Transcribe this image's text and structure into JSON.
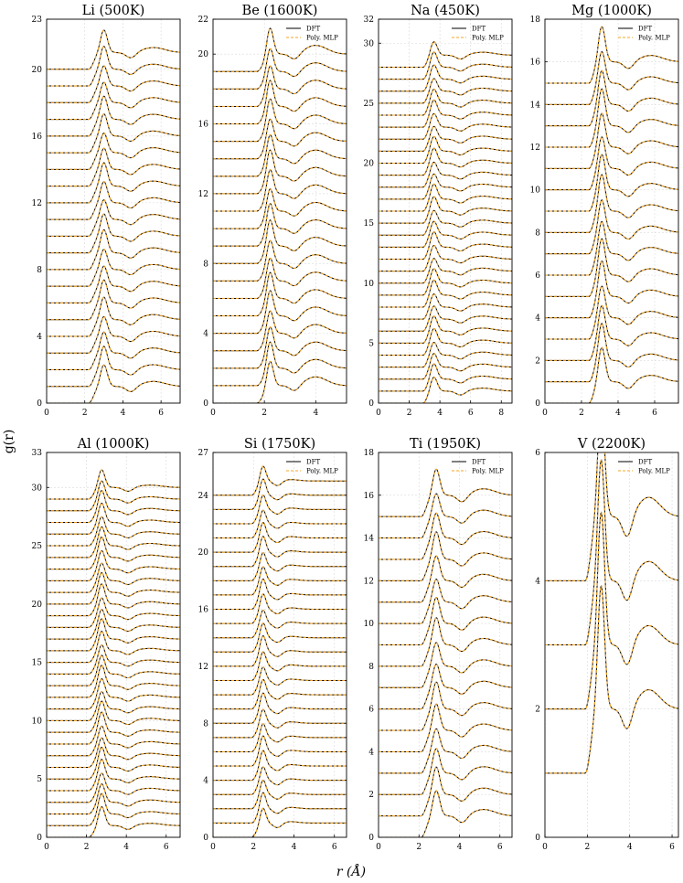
{
  "figure": {
    "ylabel": "g(r)",
    "xlabel": "r (Å)"
  },
  "legend": {
    "dft_label": "DFT",
    "mlp_label": "Poly. MLP",
    "dft_color": "#000000",
    "mlp_color": "#f5a623"
  },
  "chart_data": [
    {
      "type": "line",
      "title": "Li (500K)",
      "xlim": [
        0,
        7
      ],
      "xticks": [
        0,
        2,
        4,
        6
      ],
      "ylim": [
        0,
        23
      ],
      "yticks": [
        0,
        4,
        8,
        12,
        16,
        20,
        23
      ],
      "offsets": [
        0,
        1,
        2,
        3,
        4,
        5,
        6,
        7,
        8,
        9,
        10,
        11,
        12,
        13,
        14,
        15,
        16,
        17,
        18,
        19,
        20
      ],
      "peak1_r": 3.0,
      "peak1_h": 2.3,
      "peak2_r": 5.6,
      "peak2_h": 1.3,
      "rmin": 2.2,
      "series": [
        {
          "name": "DFT"
        },
        {
          "name": "Poly. MLP"
        }
      ],
      "has_legend": false
    },
    {
      "type": "line",
      "title": "Be (1600K)",
      "xlim": [
        0,
        5.2
      ],
      "xticks": [
        0,
        2,
        4
      ],
      "ylim": [
        0,
        22
      ],
      "yticks": [
        0,
        4,
        8,
        12,
        16,
        20,
        22
      ],
      "offsets": [
        0,
        1,
        2,
        3,
        4,
        5,
        6,
        7,
        8,
        9,
        10,
        11,
        12,
        13,
        14,
        15,
        16,
        17,
        18,
        19
      ],
      "peak1_r": 2.2,
      "peak1_h": 2.7,
      "peak2_r": 4.0,
      "peak2_h": 1.5,
      "rmin": 1.7,
      "series": [
        {
          "name": "DFT"
        },
        {
          "name": "Poly. MLP"
        }
      ],
      "has_legend": true
    },
    {
      "type": "line",
      "title": "Na (450K)",
      "xlim": [
        0,
        8.7
      ],
      "xticks": [
        0,
        2,
        4,
        6,
        8
      ],
      "ylim": [
        0,
        32
      ],
      "yticks": [
        0,
        5,
        10,
        15,
        20,
        25,
        30,
        32
      ],
      "offsets": [
        0,
        1,
        2,
        3,
        4,
        5,
        6,
        7,
        8,
        9,
        10,
        11,
        12,
        13,
        14,
        15,
        16,
        17,
        18,
        19,
        20,
        21,
        22,
        23,
        24,
        25,
        26,
        27,
        28
      ],
      "peak1_r": 3.6,
      "peak1_h": 2.2,
      "peak2_r": 6.8,
      "peak2_h": 1.25,
      "rmin": 2.9,
      "series": [
        {
          "name": "DFT"
        },
        {
          "name": "Poly. MLP"
        }
      ],
      "has_legend": true
    },
    {
      "type": "line",
      "title": "Mg (1000K)",
      "xlim": [
        0,
        7.3
      ],
      "xticks": [
        0,
        2,
        4,
        6
      ],
      "ylim": [
        0,
        18
      ],
      "yticks": [
        0,
        2,
        4,
        6,
        8,
        10,
        12,
        14,
        16,
        18
      ],
      "offsets": [
        0,
        1,
        2,
        3,
        4,
        5,
        6,
        7,
        8,
        9,
        10,
        11,
        12,
        13,
        14,
        15
      ],
      "peak1_r": 3.1,
      "peak1_h": 2.65,
      "peak2_r": 5.8,
      "peak2_h": 1.3,
      "rmin": 2.4,
      "series": [
        {
          "name": "DFT"
        },
        {
          "name": "Poly. MLP"
        }
      ],
      "has_legend": true
    },
    {
      "type": "line",
      "title": "Al (1000K)",
      "xlim": [
        0,
        6.7
      ],
      "xticks": [
        0,
        2,
        4,
        6
      ],
      "ylim": [
        0,
        33
      ],
      "yticks": [
        0,
        5,
        10,
        15,
        20,
        25,
        30,
        33
      ],
      "offsets": [
        0,
        1,
        2,
        3,
        4,
        5,
        6,
        7,
        8,
        9,
        10,
        11,
        12,
        13,
        14,
        15,
        16,
        17,
        18,
        19,
        20,
        21,
        22,
        23,
        24,
        25,
        26,
        27,
        28,
        29
      ],
      "peak1_r": 2.75,
      "peak1_h": 2.7,
      "peak2_r": 5.2,
      "peak2_h": 1.2,
      "rmin": 2.1,
      "series": [
        {
          "name": "DFT"
        },
        {
          "name": "Poly. MLP"
        }
      ],
      "has_legend": false
    },
    {
      "type": "line",
      "title": "Si (1750K)",
      "xlim": [
        0,
        6.6
      ],
      "xticks": [
        0,
        2,
        4,
        6
      ],
      "ylim": [
        0,
        27
      ],
      "yticks": [
        0,
        4,
        8,
        12,
        16,
        20,
        24,
        27
      ],
      "offsets": [
        0,
        1,
        2,
        3,
        4,
        5,
        6,
        7,
        8,
        9,
        10,
        11,
        12,
        13,
        14,
        15,
        16,
        17,
        18,
        19,
        20,
        21,
        22,
        23,
        24
      ],
      "peak1_r": 2.45,
      "peak1_h": 2.2,
      "peak2_r": 3.8,
      "peak2_h": 1.1,
      "rmin": 1.9,
      "series": [
        {
          "name": "DFT"
        },
        {
          "name": "Poly. MLP"
        }
      ],
      "has_legend": true
    },
    {
      "type": "line",
      "title": "Ti (1950K)",
      "xlim": [
        0,
        6.6
      ],
      "xticks": [
        0,
        2,
        4,
        6
      ],
      "ylim": [
        0,
        18
      ],
      "yticks": [
        0,
        2,
        4,
        6,
        8,
        10,
        12,
        14,
        16,
        18
      ],
      "offsets": [
        0,
        1,
        2,
        3,
        4,
        5,
        6,
        7,
        8,
        9,
        10,
        11,
        12,
        13,
        14,
        15
      ],
      "peak1_r": 2.85,
      "peak1_h": 2.2,
      "peak2_r": 5.2,
      "peak2_h": 1.3,
      "rmin": 2.1,
      "series": [
        {
          "name": "DFT"
        },
        {
          "name": "Poly. MLP"
        }
      ],
      "has_legend": true
    },
    {
      "type": "line",
      "title": "V (2200K)",
      "xlim": [
        0,
        6.3
      ],
      "xticks": [
        0,
        2,
        4,
        6
      ],
      "ylim": [
        0,
        6
      ],
      "yticks": [
        0,
        2,
        4,
        6
      ],
      "offsets": [
        1,
        2,
        3,
        4
      ],
      "peak1_r": 2.65,
      "peak1_h": 2.95,
      "peak2_r": 4.9,
      "peak2_h": 1.3,
      "rmin": 1.9,
      "series": [
        {
          "name": "DFT"
        },
        {
          "name": "Poly. MLP"
        }
      ],
      "has_legend": true
    }
  ]
}
